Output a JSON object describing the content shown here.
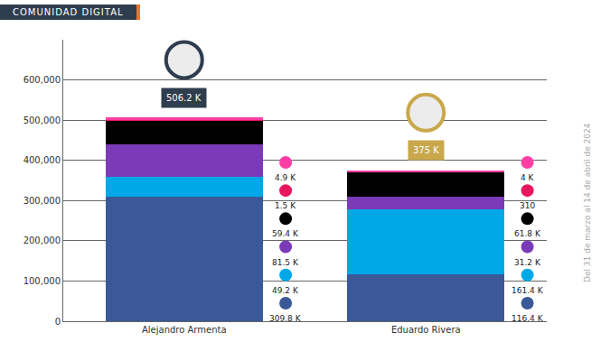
{
  "chart_data": {
    "type": "bar",
    "title": "COMUNIDAD DIGITAL",
    "subtitle": "Del 31 de marzo al 14 de abril de 2024",
    "categories": [
      "Alejandro Armenta",
      "Eduardo Rivera"
    ],
    "stacked": true,
    "data_labels": true,
    "grid": true,
    "series": [
      {
        "color": "#3b5998",
        "values": [
          309800,
          116400
        ],
        "value_labels": [
          "309.8 K",
          "116.4 K"
        ]
      },
      {
        "color": "#00a8e8",
        "values": [
          49200,
          161400
        ],
        "value_labels": [
          "49.2 K",
          "161.4 K"
        ]
      },
      {
        "color": "#7b3bb8",
        "values": [
          81500,
          31200
        ],
        "value_labels": [
          "81.5 K",
          "31.2 K"
        ]
      },
      {
        "color": "#000000",
        "values": [
          59400,
          61800
        ],
        "value_labels": [
          "59.4 K",
          "61.8 K"
        ]
      },
      {
        "color": "#e8175d",
        "values": [
          1500,
          310
        ],
        "value_labels": [
          "1.5 K",
          "310"
        ]
      },
      {
        "color": "#ff3ea5",
        "values": [
          4900,
          4000
        ],
        "value_labels": [
          "4.9 K",
          "4 K"
        ]
      }
    ],
    "totals": {
      "values": [
        506200,
        375000
      ],
      "value_labels": [
        "506.2 K",
        "375 K"
      ]
    },
    "ylim": [
      0,
      700000
    ],
    "yticks": [
      0,
      {
        "value": 100000,
        "label": "100,000"
      },
      {
        "value": 200000,
        "label": "200,000"
      },
      {
        "value": 300000,
        "label": "300,000"
      },
      {
        "value": 400000,
        "label": "400,000"
      },
      {
        "value": 500000,
        "label": "500,000"
      },
      {
        "value": 600000,
        "label": "600,000"
      }
    ]
  }
}
